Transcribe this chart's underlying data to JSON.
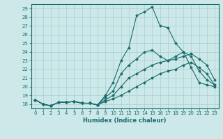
{
  "xlabel": "Humidex (Indice chaleur)",
  "ylabel": "",
  "bg_color": "#cce8e8",
  "line_color": "#1a6b6b",
  "grid_color": "#aacfcf",
  "xlim": [
    -0.5,
    23.5
  ],
  "ylim": [
    17.5,
    29.5
  ],
  "xticks": [
    0,
    1,
    2,
    3,
    4,
    5,
    6,
    7,
    8,
    9,
    10,
    11,
    12,
    13,
    14,
    15,
    16,
    17,
    18,
    19,
    20,
    21,
    22,
    23
  ],
  "yticks": [
    18,
    19,
    20,
    21,
    22,
    23,
    24,
    25,
    26,
    27,
    28,
    29
  ],
  "series": [
    [
      18.5,
      18.0,
      17.8,
      18.2,
      18.2,
      18.3,
      18.1,
      18.1,
      17.9,
      19.0,
      20.5,
      23.0,
      24.5,
      28.2,
      28.6,
      29.2,
      27.0,
      26.8,
      25.0,
      24.0,
      22.2,
      20.5,
      20.2,
      20.0
    ],
    [
      18.5,
      18.0,
      17.8,
      18.2,
      18.2,
      18.3,
      18.1,
      18.1,
      17.9,
      18.8,
      19.5,
      21.5,
      22.5,
      23.2,
      24.0,
      24.2,
      23.5,
      23.0,
      23.5,
      24.0,
      23.5,
      21.8,
      20.8,
      20.2
    ],
    [
      18.5,
      18.0,
      17.8,
      18.2,
      18.2,
      18.3,
      18.1,
      18.1,
      17.9,
      18.5,
      19.0,
      20.0,
      21.0,
      21.5,
      22.0,
      22.5,
      22.8,
      23.0,
      23.2,
      23.5,
      23.8,
      23.2,
      22.5,
      20.8
    ],
    [
      18.5,
      18.0,
      17.8,
      18.2,
      18.2,
      18.3,
      18.1,
      18.1,
      17.9,
      18.3,
      18.6,
      19.0,
      19.5,
      20.0,
      20.5,
      21.0,
      21.5,
      21.8,
      22.0,
      22.5,
      22.8,
      22.2,
      21.5,
      20.2
    ]
  ]
}
